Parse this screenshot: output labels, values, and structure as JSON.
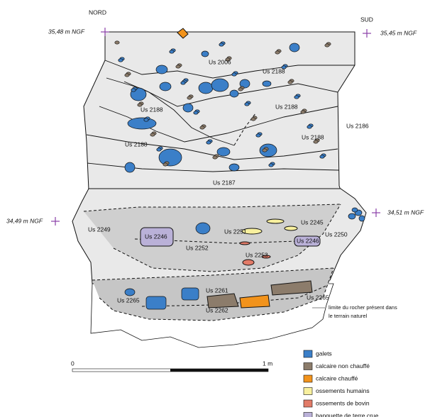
{
  "orientation": {
    "north": "NORD",
    "south": "SUD"
  },
  "elevations": [
    "35,48 m NGF",
    "35,45 m NGF",
    "34,49 m NGF",
    "34,51 m NGF"
  ],
  "units": [
    "Us 2006",
    "Us 2188",
    "Us 2188",
    "Us 2188",
    "Us 2188",
    "Us 2188",
    "Us 2186",
    "Us 2187",
    "Us 2249",
    "Us 2246",
    "Us 2251",
    "Us 2245",
    "Us 2252",
    "Us 2253",
    "Us 2250",
    "Us 2246",
    "Us 2261",
    "Us 2265",
    "Us 2262",
    "Us 2265"
  ],
  "note": [
    "limite du rocher présent dans",
    "le terrain naturel"
  ],
  "scale": {
    "start": "0",
    "end": "1 m"
  },
  "legend": [
    {
      "label": "galets",
      "color": "#3b7fc8"
    },
    {
      "label": "calcaire non chauffé",
      "color": "#8c7c6b"
    },
    {
      "label": "calcaire chauffé",
      "color": "#f2931c"
    },
    {
      "label": "ossements humains",
      "color": "#f8f09e"
    },
    {
      "label": "ossements de bovin",
      "color": "#e27b68"
    },
    {
      "label": "banquette de terre crue",
      "color": "#bab1d8"
    }
  ]
}
